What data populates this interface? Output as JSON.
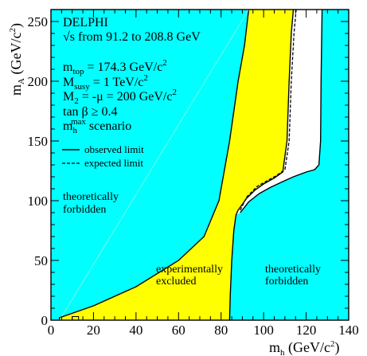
{
  "chart_data": {
    "type": "area",
    "xlabel": {
      "main": "m",
      "sub": "h",
      "unit_open": " (GeV/c",
      "unit_sup": "2",
      "unit_close": ")"
    },
    "ylabel": {
      "main": "m",
      "sub": "A",
      "unit_open": " (GeV/c",
      "unit_sup": "2",
      "unit_close": ")"
    },
    "xlim": [
      0,
      140
    ],
    "ylim": [
      0,
      260
    ],
    "xticks": [
      0,
      20,
      40,
      60,
      80,
      100,
      120,
      140
    ],
    "yticks": [
      0,
      50,
      100,
      150,
      200,
      250
    ],
    "annotations": {
      "experiment": "DELPHI",
      "energy": "√s from 91.2 to 208.8 GeV",
      "mtop": {
        "main": "m",
        "sub": "top",
        "value": " = 174.3 GeV/c",
        "sup": "2"
      },
      "msusy": {
        "main": "M",
        "sub": "susy",
        "value": " = 1 TeV/c",
        "sup": "2"
      },
      "m2": {
        "main": "M",
        "sub": "2",
        "value": " = -μ = 200 GeV/c",
        "sup": "2"
      },
      "tanbeta": "tan β ≥ 0.4",
      "scenario": {
        "main": "m",
        "sub": "h",
        "sup": "max",
        "rest": " scenario"
      }
    },
    "legend": {
      "observed": "observed limit",
      "expected": "expected limit"
    },
    "region_labels": {
      "forbidden_left": [
        "theoretically",
        "forbidden"
      ],
      "excluded": [
        "experimentally",
        "excluded"
      ],
      "forbidden_right": [
        "theoretically",
        "forbidden"
      ]
    },
    "colors": {
      "forbidden": "#00FFFF",
      "excluded": "#FFFF00",
      "allowed": "#FFFFFF",
      "frame": "#000000"
    },
    "regions": {
      "forbidden_left_boundary": [
        [
          4,
          0
        ],
        [
          4,
          2
        ],
        [
          20,
          12
        ],
        [
          40,
          28
        ],
        [
          60,
          50
        ],
        [
          72,
          70
        ],
        [
          79,
          100
        ],
        [
          84,
          150
        ],
        [
          88,
          200
        ],
        [
          91,
          230
        ],
        [
          93,
          260
        ]
      ],
      "observed_limit": [
        [
          84,
          0
        ],
        [
          84.3,
          20
        ],
        [
          85,
          50
        ],
        [
          86,
          75
        ],
        [
          87,
          88
        ],
        [
          88,
          92
        ],
        [
          92,
          102
        ],
        [
          96,
          109
        ],
        [
          100,
          114
        ],
        [
          105,
          119
        ],
        [
          109,
          124
        ],
        [
          111,
          150
        ],
        [
          112,
          200
        ],
        [
          113,
          240
        ],
        [
          114,
          260
        ]
      ],
      "expected_limit": [
        [
          89,
          92
        ],
        [
          92,
          103
        ],
        [
          97,
          112
        ],
        [
          101,
          116
        ],
        [
          106,
          121
        ],
        [
          110,
          126
        ],
        [
          112,
          150
        ],
        [
          113,
          200
        ],
        [
          114.3,
          240
        ],
        [
          115.3,
          260
        ]
      ],
      "forbidden_right_boundary": [
        [
          89,
          90
        ],
        [
          93,
          99
        ],
        [
          98,
          106
        ],
        [
          103,
          111
        ],
        [
          109,
          116
        ],
        [
          114,
          120
        ],
        [
          120,
          124
        ],
        [
          124,
          126
        ],
        [
          126,
          130
        ],
        [
          126.8,
          150
        ],
        [
          127,
          200
        ],
        [
          127.5,
          260
        ]
      ],
      "small_excluded_island": [
        [
          10,
          0
        ],
        [
          13,
          0
        ],
        [
          13,
          3
        ],
        [
          10,
          3
        ]
      ]
    }
  }
}
